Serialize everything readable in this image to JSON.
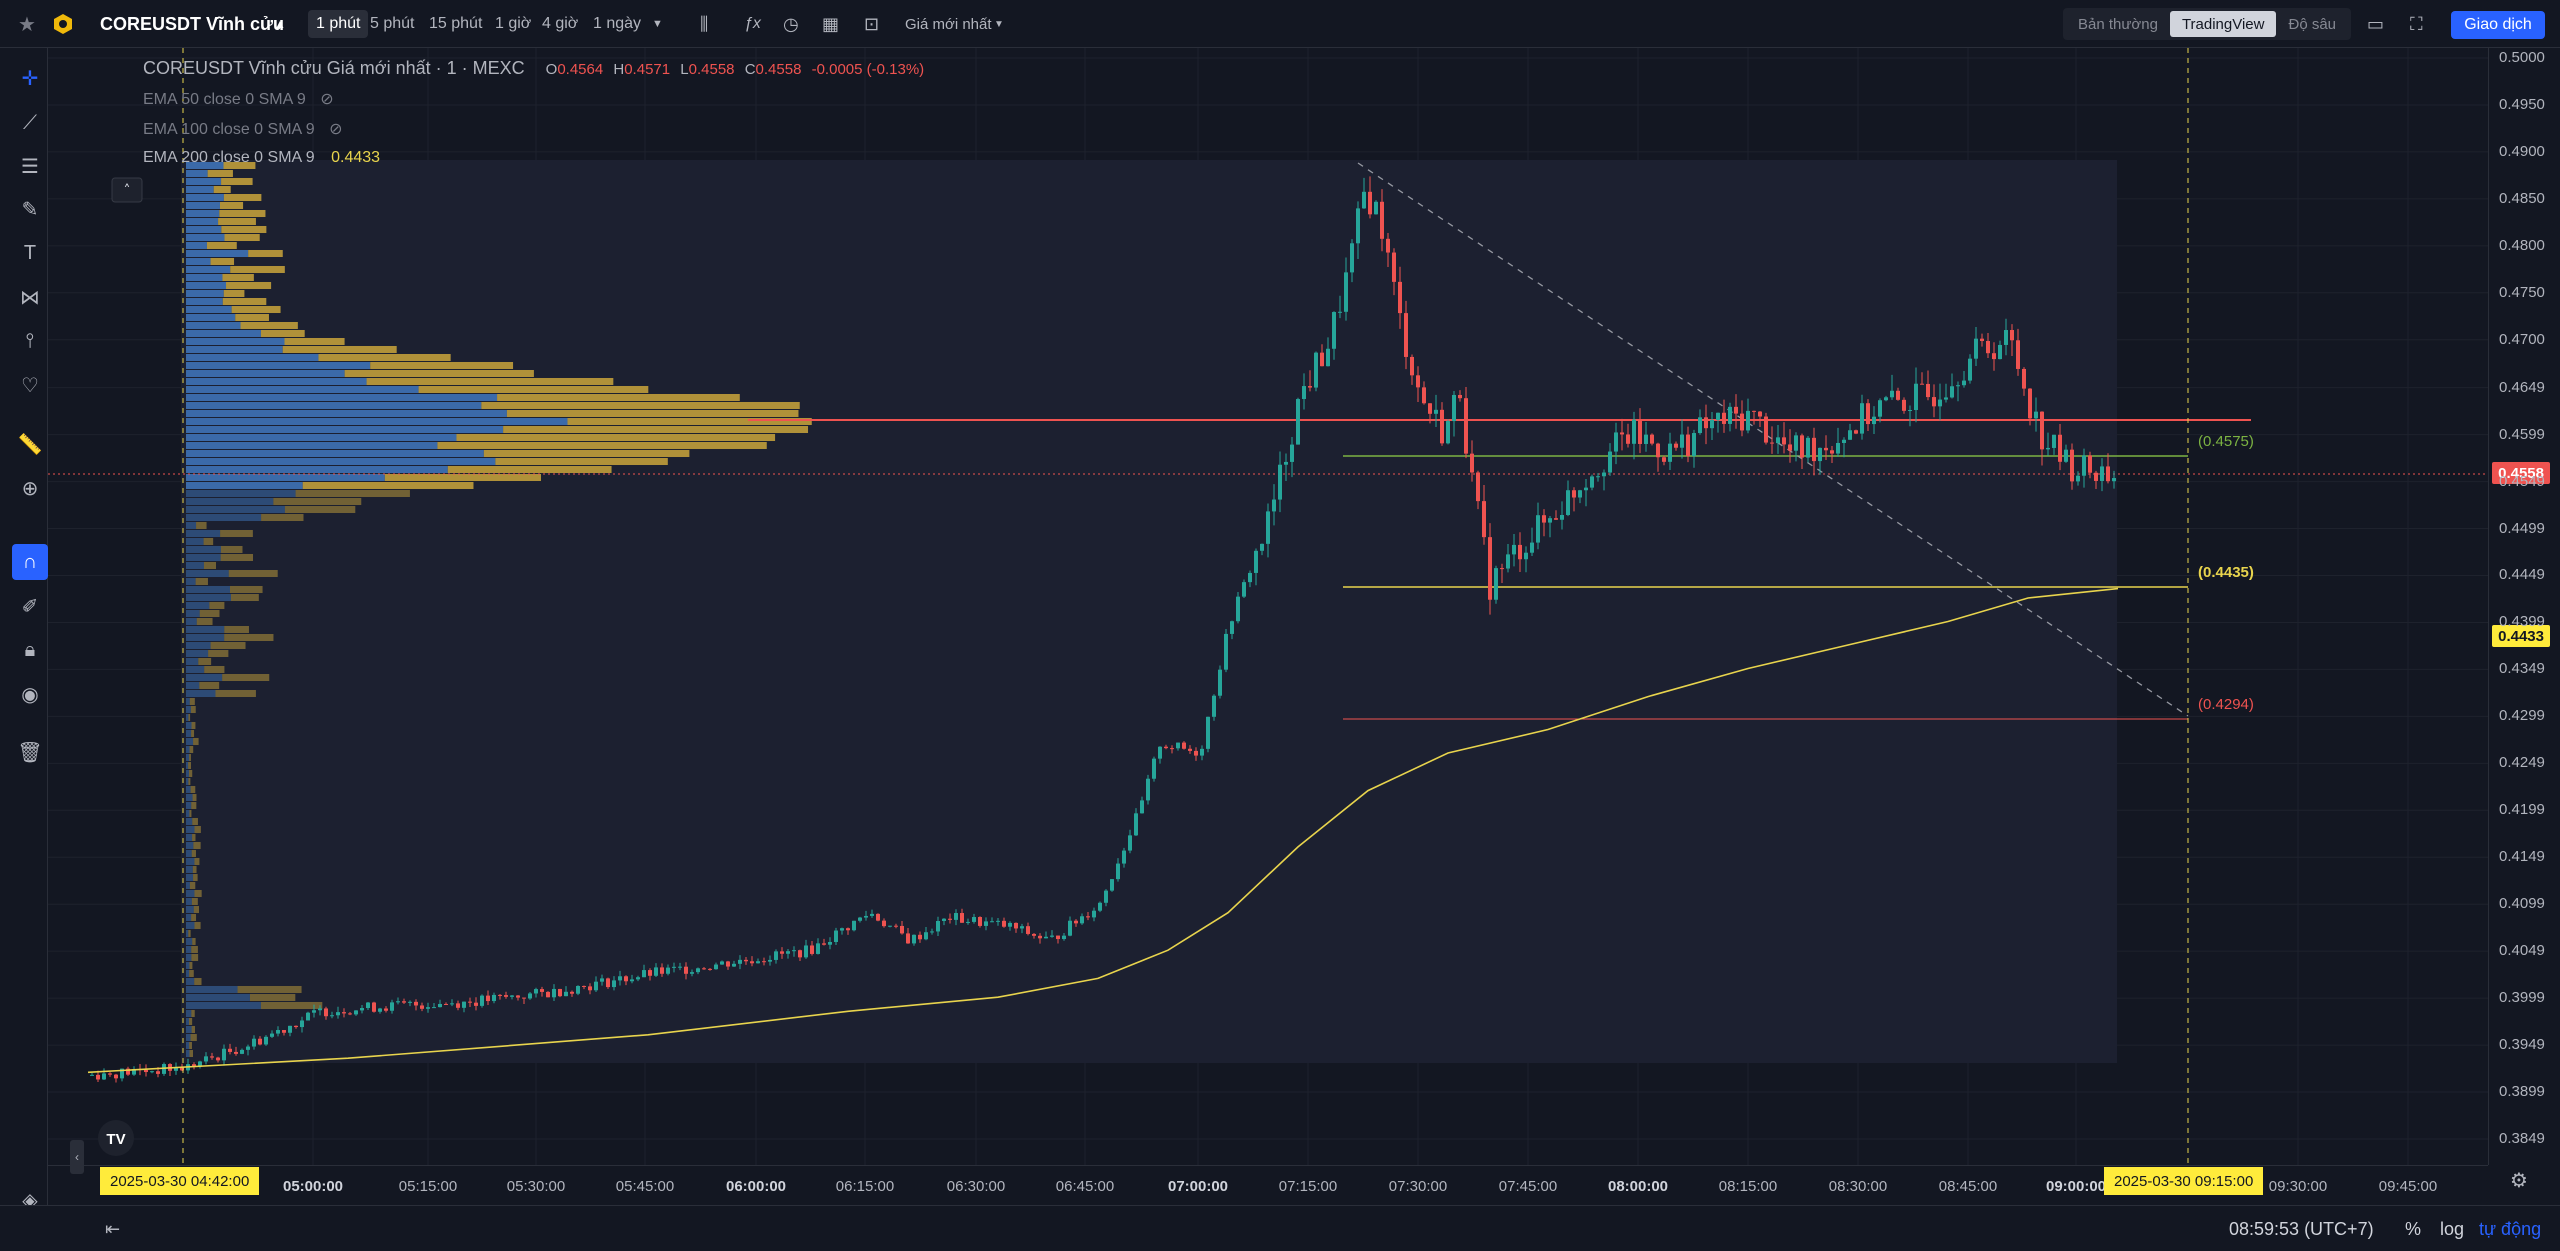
{
  "header": {
    "symbol": "COREUSDT Vĩnh cửu",
    "timeframes": [
      "1 phút",
      "5 phút",
      "15 phút",
      "1 giờ",
      "4 giờ",
      "1 ngày"
    ],
    "active_timeframe": "1 phút",
    "price_source": "Giá mới nhất",
    "view_modes": [
      "Bản thường",
      "TradingView",
      "Độ sâu"
    ],
    "active_view": "TradingView",
    "trade_button": "Giao dịch"
  },
  "legend": {
    "title": "COREUSDT Vĩnh cửu Giá mới nhất · 1 · MEXC",
    "open_label": "O",
    "open": "0.4564",
    "high_label": "H",
    "high": "0.4571",
    "low_label": "L",
    "low": "0.4558",
    "close_label": "C",
    "close": "0.4558",
    "change": "-0.0005 (-0.13%)"
  },
  "indicators": [
    {
      "label": "EMA 50 close 0 SMA 9",
      "value": ""
    },
    {
      "label": "EMA 100 close 0 SMA 9",
      "value": ""
    },
    {
      "label": "EMA 200 close 0 SMA 9",
      "value": "0.4433"
    }
  ],
  "price_scale": {
    "ticks": [
      "0.5000",
      "0.4950",
      "0.4900",
      "0.4850",
      "0.4800",
      "0.4750",
      "0.4700",
      "0.4649",
      "0.4599",
      "0.4549",
      "0.4499",
      "0.4449",
      "0.4399",
      "0.4349",
      "0.4299",
      "0.4249",
      "0.4199",
      "0.4149",
      "0.4099",
      "0.4049",
      "0.3999",
      "0.3949",
      "0.3899",
      "0.3849"
    ],
    "current_price": "0.4558",
    "ema_price": "0.4433"
  },
  "levels": {
    "green": "(0.4575)",
    "yellow": "(0.4435)",
    "red": "(0.4294)"
  },
  "time_scale": {
    "ticks": [
      {
        "label": "05:00:00",
        "bold": true
      },
      {
        "label": "05:15:00",
        "bold": false
      },
      {
        "label": "05:30:00",
        "bold": false
      },
      {
        "label": "05:45:00",
        "bold": false
      },
      {
        "label": "06:00:00",
        "bold": true
      },
      {
        "label": "06:15:00",
        "bold": false
      },
      {
        "label": "06:30:00",
        "bold": false
      },
      {
        "label": "06:45:00",
        "bold": false
      },
      {
        "label": "07:00:00",
        "bold": true
      },
      {
        "label": "07:15:00",
        "bold": false
      },
      {
        "label": "07:30:00",
        "bold": false
      },
      {
        "label": "07:45:00",
        "bold": false
      },
      {
        "label": "08:00:00",
        "bold": true
      },
      {
        "label": "08:15:00",
        "bold": false
      },
      {
        "label": "08:30:00",
        "bold": false
      },
      {
        "label": "08:45:00",
        "bold": false
      },
      {
        "label": "09:00:00",
        "bold": true
      },
      {
        "label": "09:30:00",
        "bold": false
      },
      {
        "label": "09:45:00",
        "bold": false
      }
    ],
    "range_start": "2025-03-30   04:42:00",
    "range_end": "2025-03-30   09:15:00"
  },
  "footer": {
    "clock": "08:59:53 (UTC+7)",
    "percent": "%",
    "log": "log",
    "auto": "tự động"
  },
  "colors": {
    "up": "#26a69a",
    "down": "#ef5350",
    "ema": "#e8d44d",
    "volume_buy": "#3d6fb0",
    "volume_sell": "#b8983a",
    "accent": "#2962ff"
  }
}
